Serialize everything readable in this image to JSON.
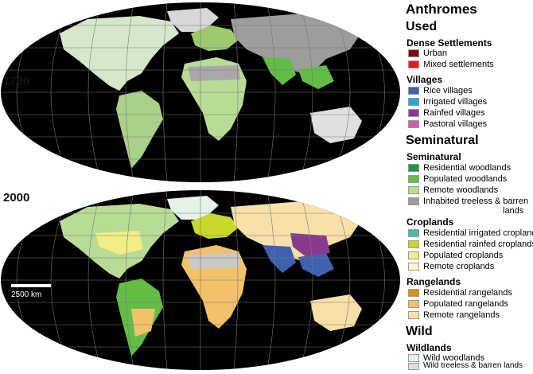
{
  "maps": [
    {
      "year": "1700"
    },
    {
      "year": "2000"
    }
  ],
  "scale_bar": {
    "label": "2500 km"
  },
  "legend": {
    "title": "Anthromes",
    "groups": [
      {
        "heading": "Used",
        "subgroups": [
          {
            "heading": "Dense Settlements",
            "items": [
              {
                "label": "Urban",
                "color": "#7a0d12"
              },
              {
                "label": "Mixed settlements",
                "color": "#e8191b"
              }
            ]
          },
          {
            "heading": "Villages",
            "items": [
              {
                "label": "Rice villages",
                "color": "#3f62b0"
              },
              {
                "label": "Irrigated villages",
                "color": "#2aa6d8"
              },
              {
                "label": "Rainfed villages",
                "color": "#8a3a8e"
              },
              {
                "label": "Pastoral villages",
                "color": "#d65aa9"
              }
            ]
          }
        ]
      },
      {
        "heading": "Seminatural",
        "subgroups": [
          {
            "heading": "Seminatural",
            "items": [
              {
                "label": "Residential woodlands",
                "color": "#1e9a3c"
              },
              {
                "label": "Populated woodlands",
                "color": "#62bd46"
              },
              {
                "label": "Remote woodlands",
                "color": "#b8dc96"
              },
              {
                "label": "Inhabited treeless & barren lands",
                "label_line1": "Inhabited treeless & barren",
                "label_line2": "lands",
                "color": "#9d9d9d"
              }
            ]
          },
          {
            "heading": "Croplands",
            "items": [
              {
                "label": "Residential irrigated croplands",
                "color": "#4fb8a5"
              },
              {
                "label": "Residential rainfed croplands",
                "color": "#c8d82a"
              },
              {
                "label": "Populated croplands",
                "color": "#f2ee86"
              },
              {
                "label": "Remote croplands",
                "color": "#fbf8cc"
              }
            ]
          },
          {
            "heading": "Rangelands",
            "items": [
              {
                "label": "Residential rangelands",
                "color": "#d4901c"
              },
              {
                "label": "Populated rangelands",
                "color": "#f2c26a"
              },
              {
                "label": "Remote rangelands",
                "color": "#f9e0a8"
              }
            ]
          }
        ]
      },
      {
        "heading": "Wild",
        "subgroups": [
          {
            "heading": "Wildlands",
            "items": [
              {
                "label": "Wild woodlands",
                "color": "#e4f4ea"
              },
              {
                "label": "Wild treeless & barren lands",
                "label_line1": "Wild treeless &",
                "label_line2": "barren lands",
                "color": "#e0e0e0"
              }
            ]
          }
        ]
      }
    ]
  }
}
